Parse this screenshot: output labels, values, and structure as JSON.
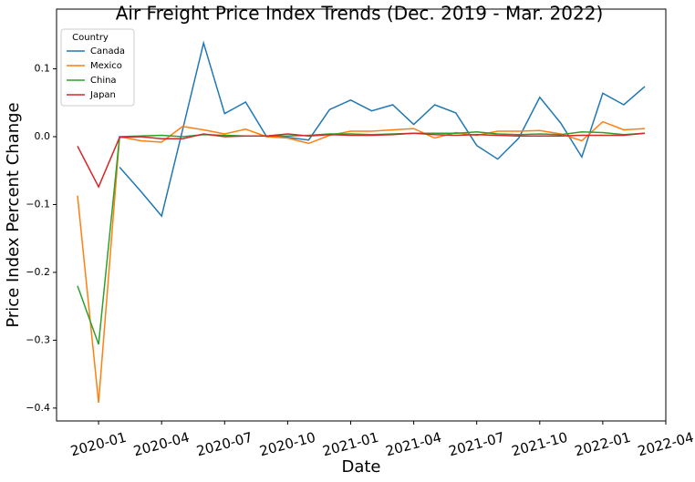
{
  "chart_data": {
    "type": "line",
    "title": "Air Freight Price Index Trends (Dec. 2019 - Mar. 2022)",
    "x_label": "Date",
    "y_label": "Price Index Percent Change",
    "legend_title": "Country",
    "legend_position": "upper left",
    "x": [
      "2019-12",
      "2020-01",
      "2020-02",
      "2020-03",
      "2020-04",
      "2020-05",
      "2020-06",
      "2020-07",
      "2020-08",
      "2020-09",
      "2020-10",
      "2020-11",
      "2020-12",
      "2021-01",
      "2021-02",
      "2021-03",
      "2021-04",
      "2021-05",
      "2021-06",
      "2021-07",
      "2021-08",
      "2021-09",
      "2021-10",
      "2021-11",
      "2021-12",
      "2022-01",
      "2022-02",
      "2022-03"
    ],
    "series": [
      {
        "name": "Canada",
        "color": "#1f77b4",
        "values": [
          null,
          null,
          -0.045,
          -0.08,
          -0.117,
          0.01,
          0.138,
          0.034,
          0.051,
          0.0,
          -0.001,
          -0.005,
          0.04,
          0.054,
          0.038,
          0.047,
          0.018,
          0.047,
          0.035,
          -0.013,
          -0.033,
          -0.002,
          0.058,
          0.02,
          -0.03,
          0.064,
          0.047,
          0.074
        ]
      },
      {
        "name": "Mexico",
        "color": "#ff7f0e",
        "values": [
          -0.087,
          -0.392,
          0.0,
          -0.006,
          -0.008,
          0.015,
          0.01,
          0.004,
          0.011,
          0.0,
          -0.002,
          -0.01,
          0.002,
          0.008,
          0.008,
          0.01,
          0.012,
          -0.002,
          0.006,
          0.002,
          0.008,
          0.008,
          0.009,
          0.004,
          -0.006,
          0.022,
          0.01,
          0.012
        ]
      },
      {
        "name": "China",
        "color": "#2ca02c",
        "values": [
          -0.22,
          -0.306,
          0.0,
          0.001,
          0.002,
          0.0,
          0.003,
          0.002,
          0.001,
          0.001,
          0.001,
          0.002,
          0.004,
          0.004,
          0.003,
          0.004,
          0.005,
          0.005,
          0.005,
          0.007,
          0.004,
          0.003,
          0.004,
          0.003,
          0.007,
          0.006,
          0.003,
          0.005
        ]
      },
      {
        "name": "Japan",
        "color": "#d62728",
        "values": [
          -0.014,
          -0.074,
          -0.001,
          0.0,
          -0.003,
          -0.003,
          0.004,
          0.0,
          0.001,
          0.001,
          0.004,
          0.001,
          0.003,
          0.002,
          0.002,
          0.003,
          0.005,
          0.003,
          0.002,
          0.003,
          0.002,
          0.001,
          0.001,
          0.001,
          0.002,
          0.002,
          0.002,
          0.005
        ]
      }
    ],
    "xlim": [
      "2019-11",
      "2022-04"
    ],
    "xticks": [
      "2020-01",
      "2020-04",
      "2020-07",
      "2020-10",
      "2021-01",
      "2021-04",
      "2021-07",
      "2021-10",
      "2022-01",
      "2022-04"
    ],
    "ylim": [
      -0.419,
      0.188
    ],
    "yticks": [
      {
        "value": -0.4,
        "label": "−0.4"
      },
      {
        "value": -0.3,
        "label": "−0.3"
      },
      {
        "value": -0.2,
        "label": "−0.2"
      },
      {
        "value": -0.1,
        "label": "−0.1"
      },
      {
        "value": 0,
        "label": "0.0"
      },
      0.1
    ],
    "grid": false
  }
}
